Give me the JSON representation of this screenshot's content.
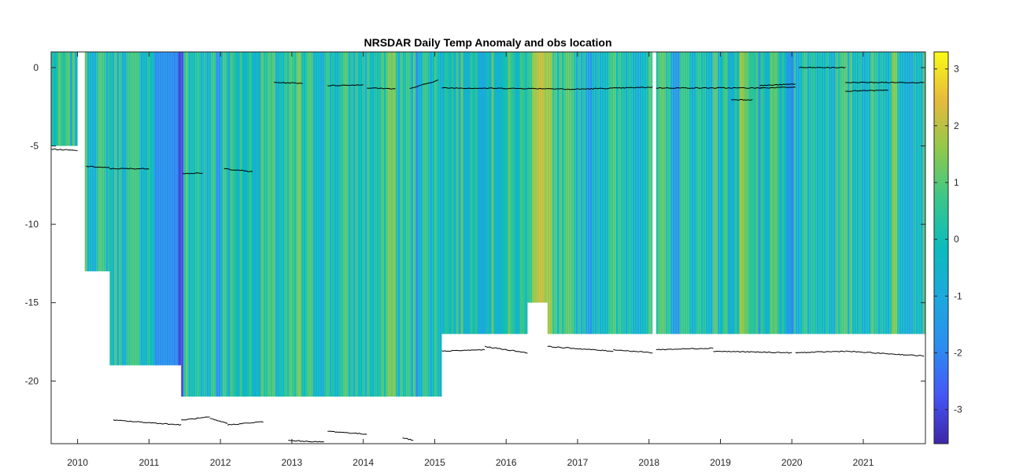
{
  "chart_data": {
    "type": "heatmap",
    "title": "NRSDAR Daily Temp Anomaly and obs location",
    "xlabel": "",
    "ylabel": "",
    "xlim": [
      2009.63,
      2021.87
    ],
    "ylim": [
      -24,
      1
    ],
    "x_ticks": [
      2010,
      2011,
      2012,
      2013,
      2014,
      2015,
      2016,
      2017,
      2018,
      2019,
      2020,
      2021
    ],
    "x_tick_labels": [
      "2010",
      "2011",
      "2012",
      "2013",
      "2014",
      "2015",
      "2016",
      "2017",
      "2018",
      "2019",
      "2020",
      "2021"
    ],
    "y_ticks": [
      0,
      -5,
      -10,
      -15,
      -20
    ],
    "y_tick_labels": [
      "0",
      "-5",
      "-10",
      "-15",
      "-20"
    ],
    "colorbar": {
      "colormap": "parula",
      "clim": [
        -3.6,
        3.3
      ],
      "ticks": [
        3,
        2,
        1,
        0,
        -1,
        -2,
        -3
      ],
      "tick_labels": [
        "3",
        "2",
        "1",
        "0",
        "-1",
        "-2",
        "-3"
      ]
    },
    "coverage_segments": [
      {
        "x": [
          2009.63,
          2010.0
        ],
        "bottom": -5
      },
      {
        "x": [
          2010.1,
          2010.45
        ],
        "bottom": -13
      },
      {
        "x": [
          2010.45,
          2011.45
        ],
        "bottom": -19
      },
      {
        "x": [
          2011.45,
          2011.77
        ],
        "bottom": -21
      },
      {
        "x": [
          2011.77,
          2012.07
        ],
        "bottom": -21
      },
      {
        "x": [
          2012.07,
          2012.6
        ],
        "bottom": -21
      },
      {
        "x": [
          2012.6,
          2014.6
        ],
        "bottom": -21
      },
      {
        "x": [
          2014.6,
          2015.1
        ],
        "bottom": -21
      },
      {
        "x": [
          2015.1,
          2016.3
        ],
        "bottom": -17
      },
      {
        "x": [
          2016.3,
          2016.58
        ],
        "bottom": -15
      },
      {
        "x": [
          2016.58,
          2018.05
        ],
        "bottom": -17
      },
      {
        "x": [
          2018.1,
          2019.0
        ],
        "bottom": -17
      },
      {
        "x": [
          2019.0,
          2020.05
        ],
        "bottom": -17
      },
      {
        "x": [
          2020.05,
          2021.87
        ],
        "bottom": -17
      }
    ],
    "anomaly_bands": [
      {
        "x": [
          2011.05,
          2011.45
        ],
        "value": -1.8
      },
      {
        "x": [
          2011.4,
          2011.47
        ],
        "value": -3.0
      },
      {
        "x": [
          2011.92,
          2012.0
        ],
        "value": -1.6
      },
      {
        "x": [
          2013.05,
          2013.1
        ],
        "value": 1.3
      },
      {
        "x": [
          2014.35,
          2014.45
        ],
        "value": 1.4
      },
      {
        "x": [
          2014.7,
          2014.76
        ],
        "value": -1.6
      },
      {
        "x": [
          2016.35,
          2016.55
        ],
        "value": 1.9
      },
      {
        "x": [
          2016.55,
          2016.62
        ],
        "value": 1.6
      },
      {
        "x": [
          2017.1,
          2017.2
        ],
        "value": -1.4
      },
      {
        "x": [
          2018.3,
          2018.4
        ],
        "value": -1.5
      },
      {
        "x": [
          2019.25,
          2019.3
        ],
        "value": 1.5
      },
      {
        "x": [
          2019.5,
          2019.56
        ],
        "value": -1.6
      },
      {
        "x": [
          2019.9,
          2020.0
        ],
        "value": -1.7
      },
      {
        "x": [
          2021.4,
          2021.46
        ],
        "value": 1.4
      }
    ],
    "obs_tracks": [
      {
        "x": [
          2009.63,
          2010.0
        ],
        "depth": [
          -5.2,
          -5.3
        ]
      },
      {
        "x": [
          2010.12,
          2010.45
        ],
        "depth": [
          -6.3,
          -6.4
        ]
      },
      {
        "x": [
          2010.45,
          2011.0
        ],
        "depth": [
          -6.45,
          -6.45
        ]
      },
      {
        "x": [
          2011.47,
          2011.75
        ],
        "depth": [
          -6.75,
          -6.75
        ]
      },
      {
        "x": [
          2012.05,
          2012.45
        ],
        "depth": [
          -6.45,
          -6.65
        ]
      },
      {
        "x": [
          2012.75,
          2013.15
        ],
        "depth": [
          -0.95,
          -1.0
        ]
      },
      {
        "x": [
          2013.5,
          2014.0
        ],
        "depth": [
          -1.15,
          -1.1
        ]
      },
      {
        "x": [
          2014.05,
          2014.45
        ],
        "depth": [
          -1.3,
          -1.35
        ]
      },
      {
        "x": [
          2014.65,
          2015.05
        ],
        "depth": [
          -1.35,
          -0.8
        ]
      },
      {
        "x": [
          2015.1,
          2016.8
        ],
        "depth": [
          -1.3,
          -1.35
        ]
      },
      {
        "x": [
          2016.8,
          2018.05
        ],
        "depth": [
          -1.4,
          -1.25
        ]
      },
      {
        "x": [
          2018.1,
          2019.6
        ],
        "depth": [
          -1.3,
          -1.3
        ]
      },
      {
        "x": [
          2019.15,
          2019.45
        ],
        "depth": [
          -2.05,
          -2.05
        ]
      },
      {
        "x": [
          2019.55,
          2020.05
        ],
        "depth": [
          -1.15,
          -1.05
        ]
      },
      {
        "x": [
          2019.55,
          2020.05
        ],
        "depth": [
          -1.3,
          -1.25
        ]
      },
      {
        "x": [
          2020.1,
          2020.75
        ],
        "depth": [
          0.0,
          0.0
        ]
      },
      {
        "x": [
          2020.75,
          2021.85
        ],
        "depth": [
          -0.95,
          -0.95
        ]
      },
      {
        "x": [
          2020.75,
          2021.35
        ],
        "depth": [
          -1.5,
          -1.45
        ]
      },
      {
        "x": [
          2015.1,
          2015.7
        ],
        "depth": [
          -18.1,
          -18.0
        ]
      },
      {
        "x": [
          2015.7,
          2016.3
        ],
        "depth": [
          -17.8,
          -18.2
        ]
      },
      {
        "x": [
          2016.58,
          2017.5
        ],
        "depth": [
          -17.8,
          -18.1
        ]
      },
      {
        "x": [
          2017.5,
          2018.05
        ],
        "depth": [
          -18.0,
          -18.2
        ]
      },
      {
        "x": [
          2018.1,
          2018.9
        ],
        "depth": [
          -18.0,
          -17.9
        ]
      },
      {
        "x": [
          2018.9,
          2020.0
        ],
        "depth": [
          -18.1,
          -18.2
        ]
      },
      {
        "x": [
          2020.05,
          2020.75
        ],
        "depth": [
          -18.2,
          -18.1
        ]
      },
      {
        "x": [
          2020.75,
          2021.85
        ],
        "depth": [
          -18.1,
          -18.4
        ]
      },
      {
        "x": [
          2010.5,
          2011.45
        ],
        "depth": [
          -22.5,
          -22.8
        ]
      },
      {
        "x": [
          2011.45,
          2011.85
        ],
        "depth": [
          -22.5,
          -22.3
        ]
      },
      {
        "x": [
          2011.85,
          2012.1
        ],
        "depth": [
          -22.4,
          -22.7
        ]
      },
      {
        "x": [
          2012.1,
          2012.6
        ],
        "depth": [
          -22.8,
          -22.6
        ]
      },
      {
        "x": [
          2012.95,
          2013.45
        ],
        "depth": [
          -23.8,
          -23.9
        ]
      },
      {
        "x": [
          2013.5,
          2014.05
        ],
        "depth": [
          -23.2,
          -23.4
        ]
      },
      {
        "x": [
          2014.55,
          2014.7
        ],
        "depth": [
          -23.6,
          -23.8
        ]
      }
    ]
  }
}
